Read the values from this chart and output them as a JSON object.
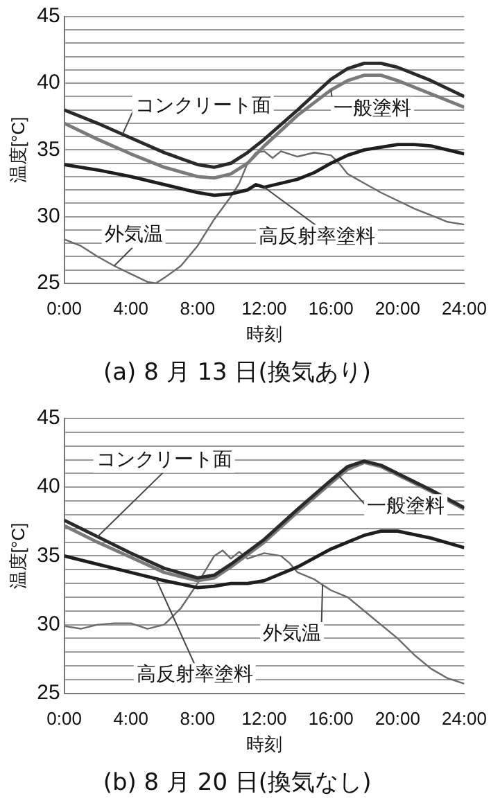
{
  "chart_data": [
    {
      "type": "line",
      "title": "(a) 8 月 13 日(換気あり)",
      "xlabel": "時刻",
      "ylabel": "温度[°C]",
      "xlim": [
        0,
        24
      ],
      "xticks": [
        {
          "value": 0,
          "label": "0:00"
        },
        {
          "value": 4,
          "label": "4:00"
        },
        {
          "value": 8,
          "label": "8:00"
        },
        {
          "value": 12,
          "label": "12:00"
        },
        {
          "value": 16,
          "label": "16:00"
        },
        {
          "value": 20,
          "label": "20:00"
        },
        {
          "value": 24,
          "label": "24:00"
        }
      ],
      "ylim": [
        25,
        45
      ],
      "yticks": [
        25,
        {
          "value": 26,
          "label": null
        },
        {
          "value": 27,
          "label": null
        },
        {
          "value": 28,
          "label": null
        },
        {
          "value": 29,
          "label": null
        },
        30,
        {
          "value": 31,
          "label": null
        },
        {
          "value": 32,
          "label": null
        },
        {
          "value": 33,
          "label": null
        },
        {
          "value": 34,
          "label": null
        },
        35,
        {
          "value": 36,
          "label": null
        },
        {
          "value": 37,
          "label": null
        },
        {
          "value": 38,
          "label": null
        },
        {
          "value": 39,
          "label": null
        },
        40,
        {
          "value": 41,
          "label": null
        },
        {
          "value": 42,
          "label": null
        },
        {
          "value": 43,
          "label": null
        },
        {
          "value": 44,
          "label": null
        },
        45
      ],
      "grid": "y",
      "legend": false,
      "marker": "none",
      "line_style": "solid",
      "series": [
        {
          "name": "コンクリート面",
          "color": "#2a2a2a",
          "x": [
            0,
            2,
            4,
            6,
            8,
            9,
            10,
            11,
            12,
            14,
            16,
            17,
            18,
            19,
            20,
            22,
            24
          ],
          "values": [
            38,
            37,
            35.9,
            34.8,
            33.9,
            33.7,
            34,
            34.8,
            35.8,
            38,
            40.3,
            41.1,
            41.5,
            41.5,
            41.2,
            40.2,
            39
          ]
        },
        {
          "name": "一般塗料",
          "color": "#7a7a7a",
          "x": [
            0,
            2,
            4,
            6,
            8,
            9,
            10,
            11,
            12,
            14,
            16,
            17,
            18,
            19,
            20,
            22,
            24
          ],
          "values": [
            37,
            35.8,
            34.7,
            33.7,
            33,
            32.9,
            33.2,
            34,
            35.3,
            37.6,
            39.5,
            40.2,
            40.6,
            40.6,
            40.2,
            39.2,
            38.2
          ]
        },
        {
          "name": "高反射率塗料",
          "color": "#1e1e1e",
          "x": [
            0,
            2,
            4,
            6,
            8,
            9,
            10,
            11,
            11.5,
            12,
            13,
            14,
            15,
            16,
            17,
            18,
            20,
            21,
            22,
            24
          ],
          "values": [
            33.9,
            33.5,
            33,
            32.4,
            31.8,
            31.6,
            31.7,
            32,
            32.4,
            32.2,
            32.5,
            32.8,
            33.3,
            34,
            34.6,
            35,
            35.4,
            35.4,
            35.3,
            34.7
          ]
        },
        {
          "name": "外気温",
          "color": "#6a6a6a",
          "x": [
            0,
            1,
            2,
            3,
            4,
            5,
            5.5,
            6,
            7,
            8,
            9,
            10,
            10.5,
            11,
            11.5,
            12,
            12.5,
            13,
            14,
            15,
            16,
            16.5,
            17,
            18,
            19,
            20,
            21,
            22,
            23,
            24
          ],
          "values": [
            28.3,
            27.8,
            27,
            26.3,
            25.7,
            25.1,
            25,
            25.4,
            26.3,
            27.8,
            29.8,
            31.5,
            32.5,
            34,
            34.8,
            34.9,
            34.4,
            34.9,
            34.5,
            34.8,
            34.6,
            34,
            33.2,
            32.5,
            31.8,
            31.2,
            30.6,
            30.1,
            29.6,
            29.4
          ]
        }
      ]
    },
    {
      "type": "line",
      "title": "(b) 8 月 20 日(換気なし)",
      "xlabel": "時刻",
      "ylabel": "温度[°C]",
      "xlim": [
        0,
        24
      ],
      "xticks": [
        {
          "value": 0,
          "label": "0:00"
        },
        {
          "value": 4,
          "label": "4:00"
        },
        {
          "value": 8,
          "label": "8:00"
        },
        {
          "value": 12,
          "label": "12:00"
        },
        {
          "value": 16,
          "label": "16:00"
        },
        {
          "value": 20,
          "label": "20:00"
        },
        {
          "value": 24,
          "label": "24:00"
        }
      ],
      "ylim": [
        25,
        45
      ],
      "yticks": [
        25,
        {
          "value": 26,
          "label": null
        },
        {
          "value": 27,
          "label": null
        },
        {
          "value": 28,
          "label": null
        },
        {
          "value": 29,
          "label": null
        },
        30,
        {
          "value": 31,
          "label": null
        },
        {
          "value": 32,
          "label": null
        },
        {
          "value": 33,
          "label": null
        },
        {
          "value": 34,
          "label": null
        },
        35,
        {
          "value": 36,
          "label": null
        },
        {
          "value": 37,
          "label": null
        },
        {
          "value": 38,
          "label": null
        },
        {
          "value": 39,
          "label": null
        },
        40,
        {
          "value": 41,
          "label": null
        },
        {
          "value": 42,
          "label": null
        },
        {
          "value": 43,
          "label": null
        },
        {
          "value": 44,
          "label": null
        },
        45
      ],
      "grid": "y",
      "legend": false,
      "marker": "none",
      "line_style": "solid",
      "series": [
        {
          "name": "コンクリート面",
          "color": "#2a2a2a",
          "x": [
            0,
            2,
            4,
            6,
            8,
            9,
            10,
            12,
            14,
            16,
            17,
            18,
            19,
            20,
            22,
            24
          ],
          "values": [
            37.6,
            36.4,
            35.2,
            34.1,
            33.4,
            33.6,
            34.4,
            36.2,
            38.4,
            40.5,
            41.5,
            41.9,
            41.6,
            41,
            39.8,
            38.5
          ]
        },
        {
          "name": "一般塗料",
          "color": "#7a7a7a",
          "x": [
            0,
            2,
            4,
            6,
            8,
            9,
            10,
            12,
            14,
            16,
            17,
            18,
            19,
            20,
            22,
            24
          ],
          "values": [
            37.2,
            36,
            34.9,
            33.8,
            33.2,
            33.4,
            34.2,
            36,
            38.2,
            40.3,
            41.3,
            41.8,
            41.5,
            40.9,
            39.7,
            38.4
          ]
        },
        {
          "name": "高反射率塗料",
          "color": "#1e1e1e",
          "x": [
            0,
            2,
            4,
            6,
            8,
            9,
            10,
            11,
            12,
            14,
            16,
            18,
            19,
            20,
            22,
            24
          ],
          "values": [
            35,
            34.4,
            33.8,
            33.2,
            32.7,
            32.8,
            33,
            33,
            33.2,
            34.2,
            35.5,
            36.5,
            36.8,
            36.8,
            36.3,
            35.6
          ]
        },
        {
          "name": "外気温",
          "color": "#6a6a6a",
          "x": [
            0,
            1,
            2,
            3,
            4,
            5,
            6,
            7,
            8,
            9,
            9.5,
            10,
            10.5,
            11,
            12,
            13,
            13.5,
            14,
            15,
            16,
            17,
            18,
            19,
            20,
            21,
            22,
            23,
            24
          ],
          "values": [
            29.9,
            29.7,
            30,
            30.1,
            30.1,
            29.7,
            30,
            31.2,
            33,
            35,
            35.4,
            34.8,
            35.3,
            34.8,
            35.2,
            35,
            34.5,
            33.8,
            33.3,
            32.5,
            32,
            31,
            30,
            29,
            27.8,
            26.8,
            26.1,
            25.7
          ]
        }
      ]
    }
  ]
}
